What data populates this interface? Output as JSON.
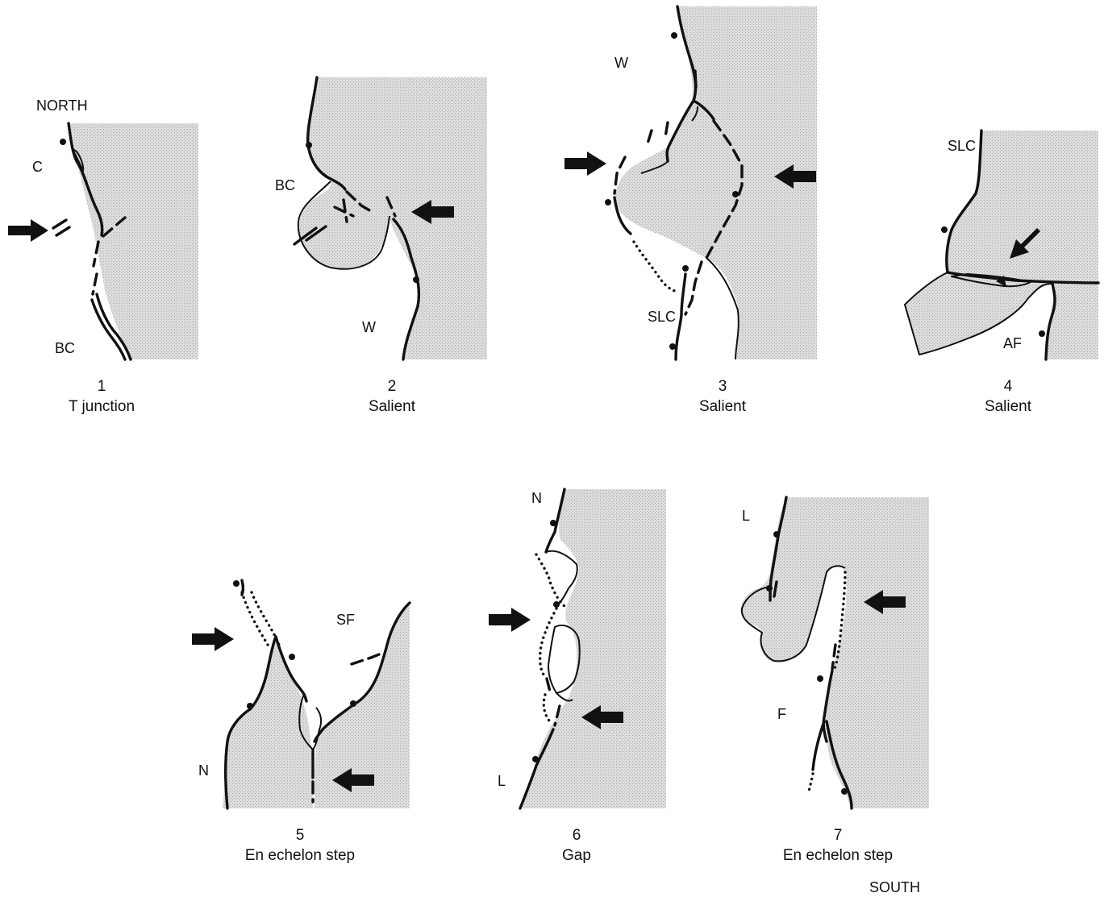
{
  "orientation": {
    "top": "NORTH",
    "bottom": "SOUTH"
  },
  "panels": [
    {
      "number": "1",
      "caption": "T junction",
      "labels": [
        "C",
        "BC"
      ]
    },
    {
      "number": "2",
      "caption": "Salient",
      "labels": [
        "BC",
        "W"
      ]
    },
    {
      "number": "3",
      "caption": "Salient",
      "labels": [
        "W",
        "SLC"
      ]
    },
    {
      "number": "4",
      "caption": "Salient",
      "labels": [
        "SLC",
        "AF"
      ]
    },
    {
      "number": "5",
      "caption": "En echelon step",
      "labels": [
        "SF",
        "N"
      ]
    },
    {
      "number": "6",
      "caption": "Gap",
      "labels": [
        "N",
        "L"
      ]
    },
    {
      "number": "7",
      "caption": "En echelon step",
      "labels": [
        "L",
        "F"
      ]
    }
  ]
}
